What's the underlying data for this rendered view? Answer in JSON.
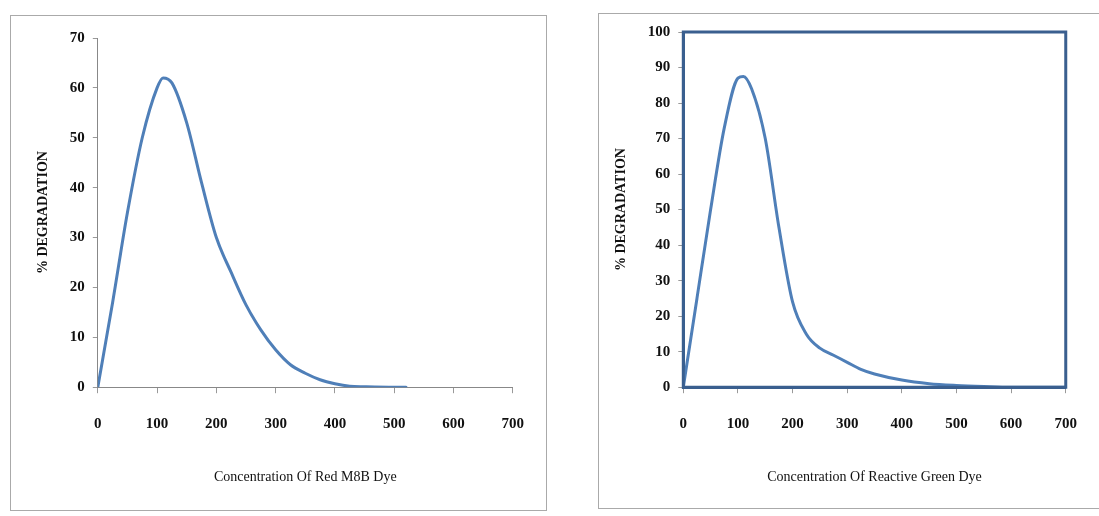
{
  "chart_data": [
    {
      "type": "line",
      "xlabel": "Concentration Of Red M8B Dye",
      "ylabel": "% DEGRADATION",
      "xlim": [
        0,
        700
      ],
      "xticks": [
        0,
        100,
        200,
        300,
        400,
        500,
        600,
        700
      ],
      "ylim": [
        0,
        70
      ],
      "yticks": [
        0,
        10,
        20,
        30,
        40,
        50,
        60,
        70
      ],
      "grid": false,
      "legend": false,
      "marker": "none",
      "line_style": "solid",
      "series": [
        {
          "color": "#4f7fb8",
          "x": [
            0,
            25,
            50,
            75,
            100,
            110,
            125,
            150,
            175,
            200,
            225,
            250,
            275,
            300,
            325,
            350,
            375,
            400,
            425,
            450,
            500,
            520
          ],
          "values": [
            0,
            17,
            35,
            50,
            60,
            62,
            61,
            53,
            41,
            30,
            23,
            16.5,
            11.5,
            7.5,
            4.5,
            2.8,
            1.5,
            0.7,
            0.2,
            0.1,
            0,
            0
          ]
        }
      ]
    },
    {
      "type": "line",
      "xlabel": "Concentration Of Reactive Green Dye",
      "ylabel": "% DEGRADATION",
      "xlim": [
        0,
        700
      ],
      "xticks": [
        0,
        100,
        200,
        300,
        400,
        500,
        600,
        700
      ],
      "ylim": [
        0,
        100
      ],
      "yticks": [
        0,
        10,
        20,
        30,
        40,
        50,
        60,
        70,
        80,
        90,
        100
      ],
      "grid": false,
      "legend": false,
      "marker": "none",
      "line_style": "solid",
      "series": [
        {
          "color": "#4f7fb8",
          "x": [
            0,
            25,
            50,
            75,
            100,
            110,
            125,
            150,
            175,
            200,
            225,
            250,
            275,
            300,
            325,
            350,
            400,
            450,
            500,
            550,
            600,
            700
          ],
          "values": [
            0,
            25,
            50,
            73,
            87,
            87.5,
            84,
            70,
            45,
            24,
            15,
            11,
            9,
            7,
            5,
            3.7,
            2,
            1,
            0.5,
            0.2,
            0,
            0
          ]
        }
      ]
    }
  ]
}
